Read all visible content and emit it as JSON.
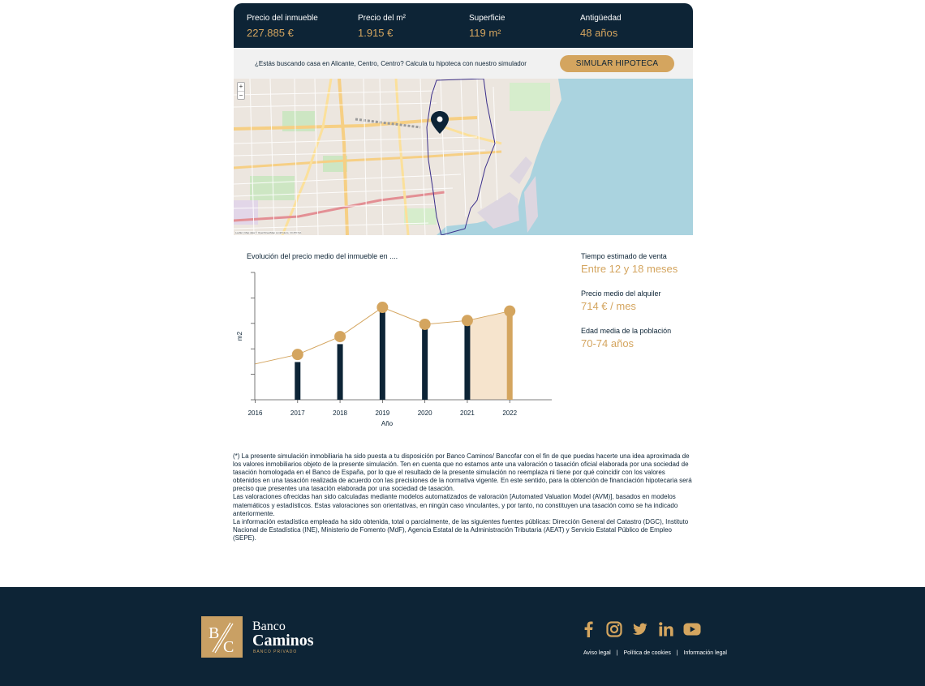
{
  "stats": [
    {
      "label": "Precio del inmueble",
      "value": "227.885 €"
    },
    {
      "label": "Precio del m²",
      "value": "1.915 €"
    },
    {
      "label": "Superficie",
      "value": "119 m²"
    },
    {
      "label": "Antigüedad",
      "value": "48 años"
    }
  ],
  "banner": {
    "text": "¿Estás buscando casa en Alicante, Centro, Centro? Calcula tu hipoteca con nuestro simulador",
    "button_label": "SIMULAR HIPOTECA"
  },
  "map": {
    "zoom_in": "+",
    "zoom_out": "−",
    "attribution": "Leaflet | Map data © OpenStreetMap contributors, CC-BY-SA"
  },
  "chart_title": "Evolución del precio medio del inmueble en ....",
  "chart_data": {
    "type": "bar",
    "categories": [
      "2016",
      "2017",
      "2018",
      "2019",
      "2020",
      "2021",
      "2022"
    ],
    "values": [
      null,
      1650,
      1840,
      2190,
      2050,
      2090,
      2170
    ],
    "line_values": [
      1630,
      1730,
      1920,
      2230,
      2050,
      2090,
      2190
    ],
    "xlabel": "Año",
    "ylabel": "m2",
    "ylim": [
      1250,
      2600
    ],
    "highlight_category": "2022",
    "colors": {
      "bar": "#0d2436",
      "highlight": "#d4a55f",
      "point": "#d4a55f",
      "line": "#d4a55f",
      "area": "#f6e4cd"
    }
  },
  "info": [
    {
      "label": "Tiempo estimado de venta",
      "value": "Entre 12 y 18 meses"
    },
    {
      "label": "Precio medio del alquiler",
      "value": "714 € / mes"
    },
    {
      "label": "Edad media de la población",
      "value": "70-74 años"
    }
  ],
  "disclaimer": [
    "(*) La presente simulación inmobiliaria ha sido puesta a tu disposición por Banco Caminos/ Bancofar con el fin de que puedas hacerte una idea aproximada de los valores inmobiliarios objeto de la presente simulación. Ten en cuenta que no estamos ante una valoración o tasación oficial elaborada por una sociedad de tasación homologada en el Banco de España, por lo que el resultado de la presente simulación no reemplaza ni tiene por qué coincidir con los valores obtenidos en una tasación realizada de acuerdo con las precisiones de la normativa vigente. En este sentido, para la obtención de financiación hipotecaria será preciso que presentes una tasación elaborada por una sociedad de tasación.",
    "Las valoraciones ofrecidas han sido calculadas mediante modelos automatizados de valoración [Automated Valuation Model (AVM)], basados en modelos matemáticos y estadísticos. Estas valoraciones son orientativas, en ningún caso vinculantes, y por tanto, no constituyen una tasación como se ha indicado anteriormente.",
    "La información estadística empleada ha sido obtenida, total o parcialmente, de las siguientes fuentes públicas: Dirección General del Catastro (DGC), Instituto Nacional de Estadística (INE), Ministerio de Fomento (MdF), Agencia Estatal de la Administración Tributaria (AEAT) y Servicio Estatal Público de Empleo (SEPE)."
  ],
  "footer": {
    "logo_bank": "Banco",
    "logo_name": "Caminos",
    "logo_tag": "BANCO PRIVADO",
    "logo_mark": "B/C",
    "socials": [
      "facebook-icon",
      "instagram-icon",
      "twitter-icon",
      "linkedin-icon",
      "youtube-icon"
    ],
    "links": [
      "Aviso legal",
      "Política de cookies",
      "Información legal"
    ],
    "separator": "|"
  }
}
